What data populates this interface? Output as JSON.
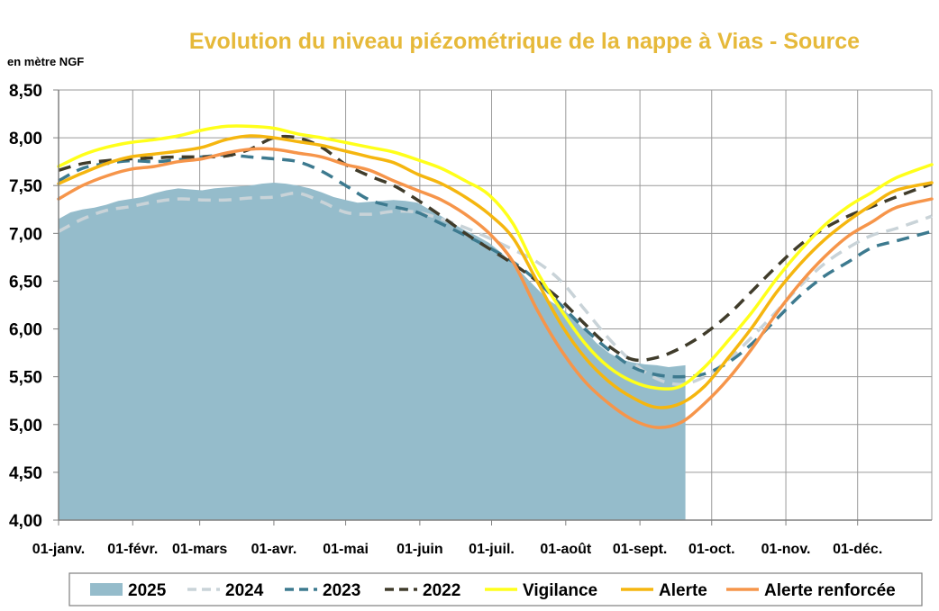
{
  "chart_data": {
    "type": "line",
    "title": "Evolution du niveau piézométrique  de la nappe à Vias  - Source",
    "ylabel": "en mètre NGF",
    "xlabel": "",
    "ylim": [
      4.0,
      8.5
    ],
    "yticks": [
      "4,00",
      "4,50",
      "5,00",
      "5,50",
      "6,00",
      "6,50",
      "7,00",
      "7,50",
      "8,00",
      "8,50"
    ],
    "xticks": [
      "01-janv.",
      "01-févr.",
      "01-mars",
      "01-avr.",
      "01-mai",
      "01-juin",
      "01-juil.",
      "01-août",
      "01-sept.",
      "01-oct.",
      "01-nov.",
      "01-déc."
    ],
    "xtick_days": [
      0,
      31,
      59,
      90,
      120,
      151,
      181,
      212,
      243,
      273,
      304,
      334
    ],
    "x_max_day": 365,
    "grid": true,
    "legend_position": "bottom",
    "series": [
      {
        "name": "2025",
        "style": "area",
        "color": "#95bccb",
        "x": [
          0,
          5,
          10,
          15,
          20,
          25,
          30,
          35,
          40,
          45,
          50,
          55,
          60,
          65,
          70,
          75,
          80,
          85,
          90,
          95,
          100,
          105,
          110,
          115,
          120,
          125,
          130,
          135,
          140,
          145,
          150,
          155,
          160,
          165,
          170,
          175,
          180,
          185,
          190,
          195,
          200,
          205,
          210,
          215,
          220,
          225,
          230,
          235,
          240,
          245,
          250,
          255,
          262
        ],
        "y": [
          7.15,
          7.22,
          7.25,
          7.27,
          7.3,
          7.34,
          7.36,
          7.38,
          7.42,
          7.45,
          7.47,
          7.46,
          7.45,
          7.47,
          7.48,
          7.49,
          7.5,
          7.52,
          7.53,
          7.52,
          7.5,
          7.47,
          7.43,
          7.38,
          7.35,
          7.32,
          7.33,
          7.34,
          7.35,
          7.34,
          7.32,
          7.25,
          7.18,
          7.1,
          7.03,
          6.97,
          6.9,
          6.8,
          6.68,
          6.55,
          6.42,
          6.3,
          6.22,
          6.12,
          5.98,
          5.85,
          5.75,
          5.68,
          5.65,
          5.63,
          5.62,
          5.6,
          5.62
        ]
      },
      {
        "name": "2024",
        "style": "dash",
        "color": "#c9d3d8",
        "x": [
          0,
          10,
          20,
          30,
          40,
          50,
          60,
          70,
          80,
          90,
          100,
          110,
          120,
          130,
          140,
          150,
          160,
          170,
          180,
          190,
          200,
          210,
          220,
          230,
          240,
          250,
          260,
          270,
          280,
          290,
          300,
          310,
          320,
          330,
          340,
          350,
          365
        ],
        "y": [
          7.02,
          7.15,
          7.24,
          7.28,
          7.33,
          7.36,
          7.35,
          7.35,
          7.37,
          7.38,
          7.42,
          7.33,
          7.22,
          7.2,
          7.23,
          7.22,
          7.15,
          7.06,
          6.95,
          6.83,
          6.7,
          6.5,
          6.2,
          5.9,
          5.65,
          5.48,
          5.42,
          5.5,
          5.68,
          5.92,
          6.18,
          6.45,
          6.68,
          6.85,
          6.98,
          7.05,
          7.18
        ]
      },
      {
        "name": "2023",
        "style": "dash",
        "color": "#3d7a8f",
        "x": [
          0,
          10,
          20,
          30,
          40,
          50,
          60,
          70,
          80,
          90,
          100,
          110,
          120,
          130,
          140,
          150,
          160,
          170,
          180,
          190,
          200,
          210,
          220,
          230,
          240,
          250,
          260,
          270,
          280,
          290,
          300,
          310,
          320,
          330,
          340,
          350,
          365
        ],
        "y": [
          7.55,
          7.68,
          7.73,
          7.76,
          7.75,
          7.77,
          7.8,
          7.82,
          7.8,
          7.78,
          7.75,
          7.65,
          7.5,
          7.35,
          7.28,
          7.22,
          7.1,
          6.98,
          6.85,
          6.7,
          6.5,
          6.25,
          6.0,
          5.78,
          5.6,
          5.52,
          5.5,
          5.53,
          5.65,
          5.85,
          6.1,
          6.35,
          6.55,
          6.7,
          6.85,
          6.92,
          7.02
        ]
      },
      {
        "name": "2022",
        "style": "dash",
        "color": "#403c2b",
        "x": [
          0,
          10,
          20,
          30,
          40,
          50,
          60,
          70,
          80,
          90,
          100,
          110,
          120,
          130,
          140,
          150,
          160,
          170,
          180,
          190,
          200,
          210,
          220,
          230,
          240,
          250,
          260,
          270,
          280,
          290,
          300,
          310,
          320,
          330,
          340,
          350,
          365
        ],
        "y": [
          7.66,
          7.73,
          7.76,
          7.78,
          7.79,
          7.8,
          7.8,
          7.81,
          7.88,
          8.0,
          8.0,
          7.9,
          7.72,
          7.6,
          7.5,
          7.35,
          7.18,
          7.0,
          6.84,
          6.68,
          6.5,
          6.3,
          6.05,
          5.82,
          5.68,
          5.7,
          5.8,
          5.95,
          6.15,
          6.4,
          6.65,
          6.88,
          7.05,
          7.18,
          7.28,
          7.38,
          7.52
        ]
      },
      {
        "name": "Vigilance",
        "style": "line",
        "color": "#ffff1a",
        "x": [
          0,
          10,
          20,
          30,
          40,
          50,
          60,
          70,
          80,
          90,
          100,
          110,
          120,
          130,
          140,
          150,
          160,
          170,
          180,
          190,
          200,
          210,
          220,
          230,
          240,
          250,
          260,
          270,
          280,
          290,
          300,
          310,
          320,
          330,
          340,
          350,
          365
        ],
        "y": [
          7.7,
          7.82,
          7.9,
          7.95,
          7.98,
          8.02,
          8.08,
          8.12,
          8.12,
          8.1,
          8.04,
          8.0,
          7.95,
          7.9,
          7.85,
          7.77,
          7.68,
          7.55,
          7.4,
          7.1,
          6.6,
          6.2,
          5.85,
          5.6,
          5.45,
          5.38,
          5.4,
          5.6,
          5.88,
          6.18,
          6.52,
          6.82,
          7.08,
          7.28,
          7.43,
          7.58,
          7.72
        ]
      },
      {
        "name": "Alerte",
        "style": "line",
        "color": "#f5b60f",
        "x": [
          0,
          10,
          20,
          30,
          40,
          50,
          60,
          70,
          80,
          90,
          100,
          110,
          120,
          130,
          140,
          150,
          160,
          170,
          180,
          190,
          200,
          210,
          220,
          230,
          240,
          250,
          260,
          270,
          280,
          290,
          300,
          310,
          320,
          330,
          340,
          350,
          365
        ],
        "y": [
          7.52,
          7.63,
          7.73,
          7.8,
          7.83,
          7.86,
          7.9,
          7.98,
          8.02,
          8.0,
          7.96,
          7.92,
          7.86,
          7.8,
          7.74,
          7.62,
          7.52,
          7.38,
          7.2,
          6.95,
          6.5,
          6.05,
          5.7,
          5.45,
          5.28,
          5.18,
          5.22,
          5.4,
          5.7,
          6.02,
          6.38,
          6.68,
          6.93,
          7.13,
          7.3,
          7.45,
          7.53
        ]
      },
      {
        "name": "Alerte renforcée",
        "style": "line",
        "color": "#f6954a",
        "x": [
          0,
          10,
          20,
          30,
          40,
          50,
          60,
          70,
          80,
          90,
          100,
          110,
          120,
          130,
          140,
          150,
          160,
          170,
          180,
          190,
          200,
          210,
          220,
          230,
          240,
          250,
          260,
          270,
          280,
          290,
          300,
          310,
          320,
          330,
          340,
          350,
          365
        ],
        "y": [
          7.36,
          7.5,
          7.6,
          7.67,
          7.7,
          7.75,
          7.78,
          7.84,
          7.88,
          7.88,
          7.84,
          7.8,
          7.72,
          7.66,
          7.55,
          7.45,
          7.35,
          7.2,
          7.0,
          6.7,
          6.2,
          5.78,
          5.45,
          5.22,
          5.05,
          4.97,
          5.02,
          5.22,
          5.48,
          5.8,
          6.16,
          6.48,
          6.75,
          6.97,
          7.12,
          7.27,
          7.36
        ]
      }
    ]
  }
}
